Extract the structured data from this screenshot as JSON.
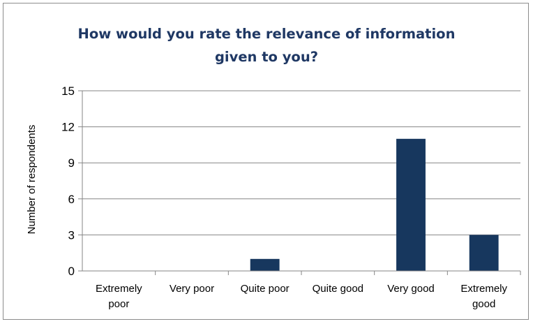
{
  "chart_data": {
    "type": "bar",
    "title_lines": [
      "How would you rate the relevance of information",
      "given to you?"
    ],
    "xlabel": "",
    "ylabel": "Number of respondents",
    "categories": [
      [
        "Extremely",
        "poor"
      ],
      [
        "Very poor"
      ],
      [
        "Quite poor"
      ],
      [
        "Quite good"
      ],
      [
        "Very good"
      ],
      [
        "Extremely",
        "good"
      ]
    ],
    "values": [
      0,
      0,
      1,
      0,
      11,
      3
    ],
    "ylim": [
      0,
      15
    ],
    "yticks": [
      "0",
      "3",
      "6",
      "9",
      "12",
      "15"
    ],
    "bar_color": "#17375e",
    "grid": true,
    "legend": "none"
  }
}
